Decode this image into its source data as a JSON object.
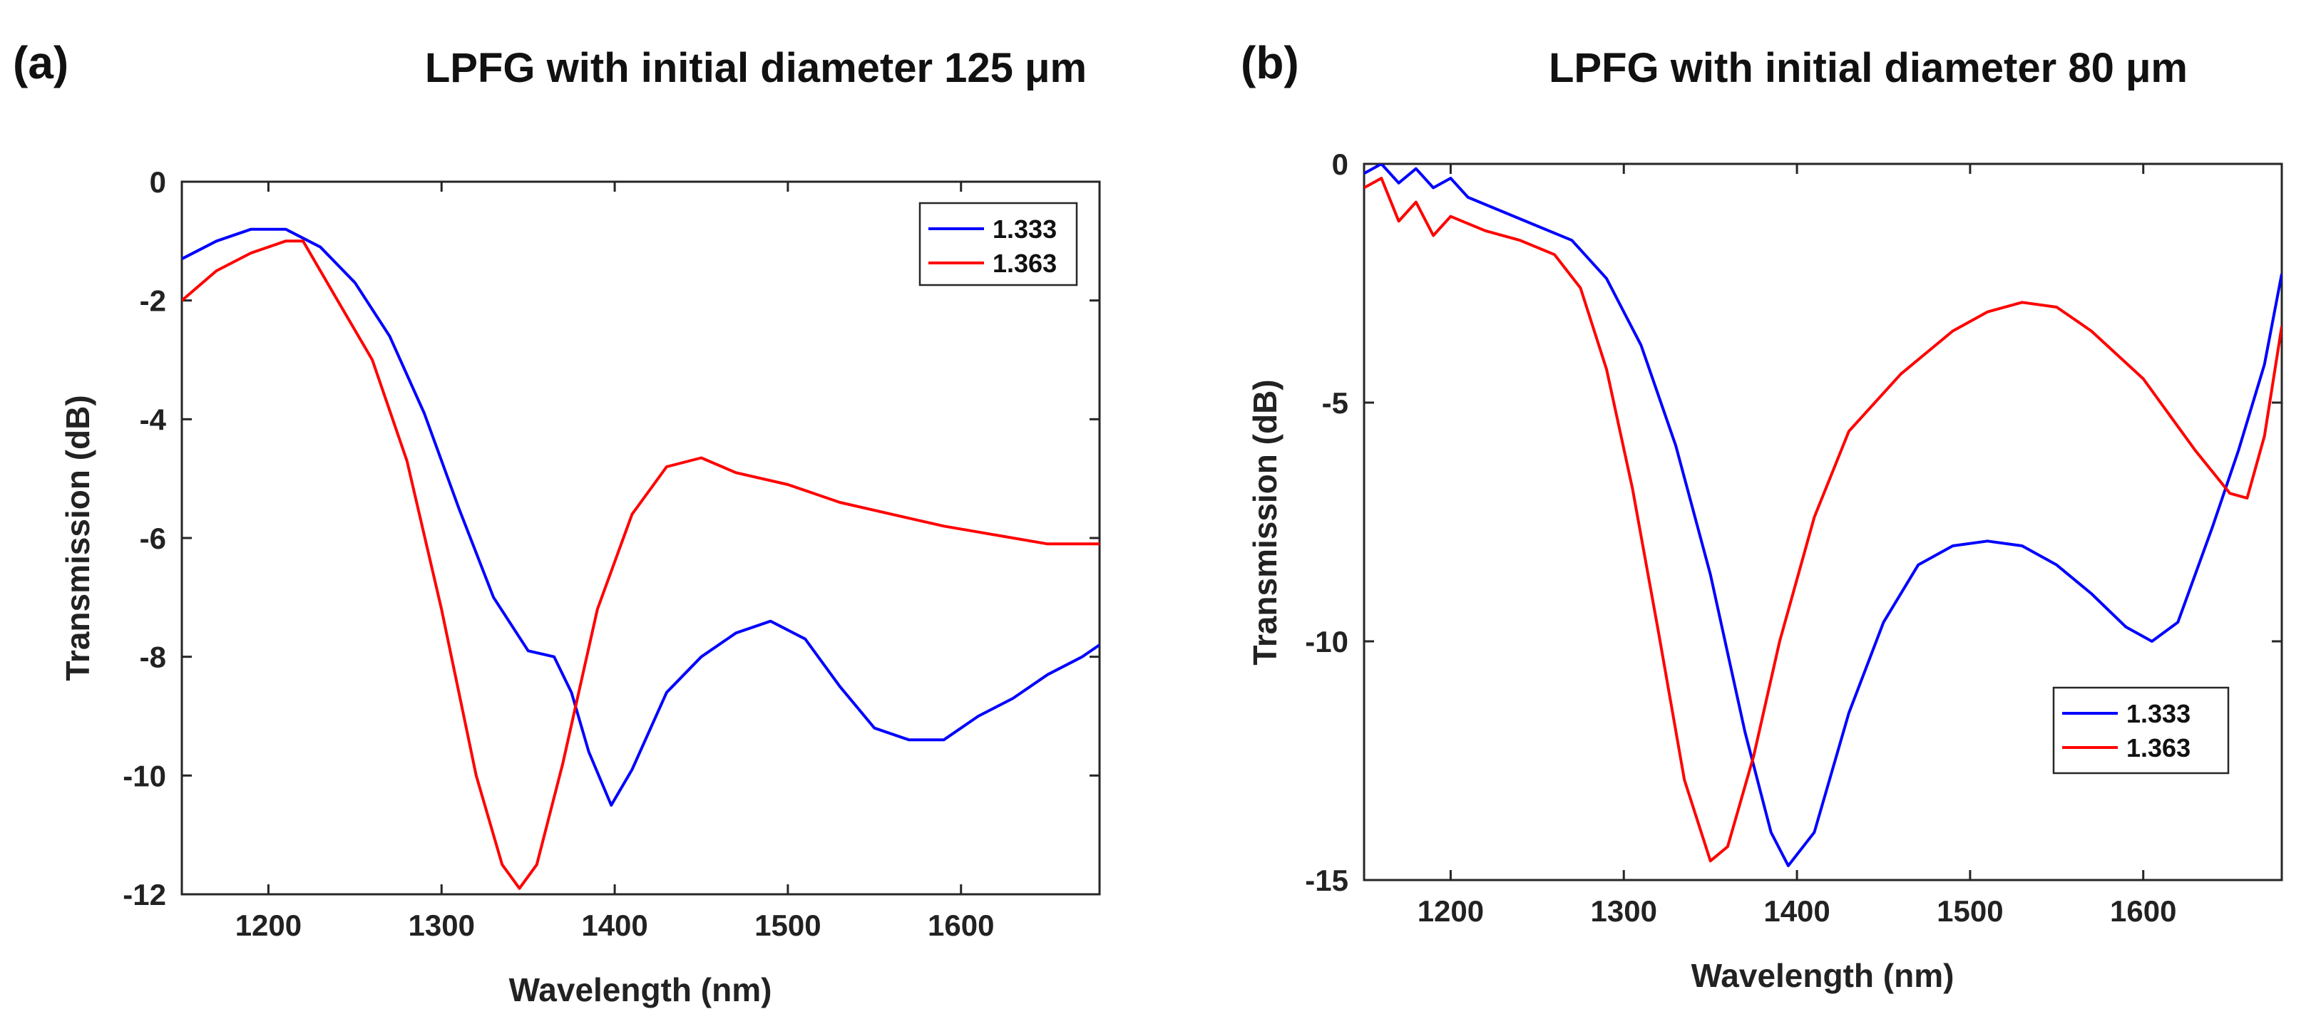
{
  "chart_data": [
    {
      "type": "line",
      "panel_label": "(a)",
      "title": "LPFG with initial diameter 125 μm",
      "xlabel": "Wavelength (nm)",
      "ylabel": "Transmission (dB)",
      "xlim": [
        1150,
        1680
      ],
      "ylim": [
        -12,
        0
      ],
      "xticks": [
        1200,
        1300,
        1400,
        1500,
        1600
      ],
      "yticks": [
        0,
        -2,
        -4,
        -6,
        -8,
        -10,
        -12
      ],
      "xtick_labels": [
        "1200",
        "1300",
        "1400",
        "1500",
        "1600"
      ],
      "ytick_labels": [
        "0",
        "-2",
        "-4",
        "-6",
        "-8",
        "-10",
        "-12"
      ],
      "legend_position": "top-right",
      "series": [
        {
          "name": "1.333",
          "color": "#0000ff",
          "x": [
            1150,
            1170,
            1190,
            1210,
            1230,
            1250,
            1270,
            1290,
            1310,
            1330,
            1350,
            1365,
            1375,
            1385,
            1398,
            1410,
            1430,
            1450,
            1470,
            1490,
            1510,
            1530,
            1550,
            1570,
            1590,
            1610,
            1630,
            1650,
            1670,
            1680
          ],
          "y": [
            -1.3,
            -1.0,
            -0.8,
            -0.8,
            -1.1,
            -1.7,
            -2.6,
            -3.9,
            -5.5,
            -7.0,
            -7.9,
            -8.0,
            -8.6,
            -9.6,
            -10.5,
            -9.9,
            -8.6,
            -8.0,
            -7.6,
            -7.4,
            -7.7,
            -8.5,
            -9.2,
            -9.4,
            -9.4,
            -9.0,
            -8.7,
            -8.3,
            -8.0,
            -7.8
          ]
        },
        {
          "name": "1.363",
          "color": "#ff0000",
          "x": [
            1150,
            1170,
            1190,
            1210,
            1220,
            1240,
            1260,
            1280,
            1300,
            1320,
            1335,
            1345,
            1355,
            1370,
            1390,
            1410,
            1430,
            1450,
            1470,
            1500,
            1530,
            1560,
            1590,
            1620,
            1650,
            1680
          ],
          "y": [
            -2.0,
            -1.5,
            -1.2,
            -1.0,
            -1.0,
            -2.0,
            -3.0,
            -4.7,
            -7.2,
            -10.0,
            -11.5,
            -11.9,
            -11.5,
            -9.8,
            -7.2,
            -5.6,
            -4.8,
            -4.65,
            -4.9,
            -5.1,
            -5.4,
            -5.6,
            -5.8,
            -5.95,
            -6.1,
            -6.1
          ]
        }
      ]
    },
    {
      "type": "line",
      "panel_label": "(b)",
      "title": "LPFG with initial diameter 80 μm",
      "xlabel": "Wavelength (nm)",
      "ylabel": "Transmission (dB)",
      "xlim": [
        1150,
        1680
      ],
      "ylim": [
        -15,
        0
      ],
      "xticks": [
        1200,
        1300,
        1400,
        1500,
        1600
      ],
      "yticks": [
        0,
        -5,
        -10,
        -15
      ],
      "xtick_labels": [
        "1200",
        "1300",
        "1400",
        "1500",
        "1600"
      ],
      "ytick_labels": [
        "0",
        "-5",
        "-10",
        "-15"
      ],
      "legend_position": "bottom-right",
      "series": [
        {
          "name": "1.333",
          "color": "#0000ff",
          "x": [
            1150,
            1160,
            1170,
            1180,
            1190,
            1200,
            1210,
            1230,
            1250,
            1270,
            1290,
            1310,
            1330,
            1350,
            1370,
            1385,
            1395,
            1410,
            1430,
            1450,
            1470,
            1490,
            1510,
            1530,
            1550,
            1570,
            1590,
            1605,
            1620,
            1640,
            1655,
            1670,
            1680
          ],
          "y": [
            -0.2,
            0.0,
            -0.4,
            -0.1,
            -0.5,
            -0.3,
            -0.7,
            -1.0,
            -1.3,
            -1.6,
            -2.4,
            -3.8,
            -5.9,
            -8.6,
            -11.9,
            -14.0,
            -14.7,
            -14.0,
            -11.5,
            -9.6,
            -8.4,
            -8.0,
            -7.9,
            -8.0,
            -8.4,
            -9.0,
            -9.7,
            -10.0,
            -9.6,
            -7.6,
            -6.0,
            -4.2,
            -2.3
          ]
        },
        {
          "name": "1.363",
          "color": "#ff0000",
          "x": [
            1150,
            1160,
            1170,
            1180,
            1190,
            1200,
            1220,
            1240,
            1260,
            1275,
            1290,
            1305,
            1320,
            1335,
            1350,
            1360,
            1375,
            1390,
            1410,
            1430,
            1460,
            1490,
            1510,
            1530,
            1550,
            1570,
            1600,
            1630,
            1650,
            1660,
            1670,
            1680
          ],
          "y": [
            -0.5,
            -0.3,
            -1.2,
            -0.8,
            -1.5,
            -1.1,
            -1.4,
            -1.6,
            -1.9,
            -2.6,
            -4.3,
            -6.8,
            -9.8,
            -12.9,
            -14.6,
            -14.3,
            -12.4,
            -10.0,
            -7.4,
            -5.6,
            -4.4,
            -3.5,
            -3.1,
            -2.9,
            -3.0,
            -3.5,
            -4.5,
            -6.0,
            -6.9,
            -7.0,
            -5.7,
            -3.4
          ]
        }
      ]
    }
  ]
}
